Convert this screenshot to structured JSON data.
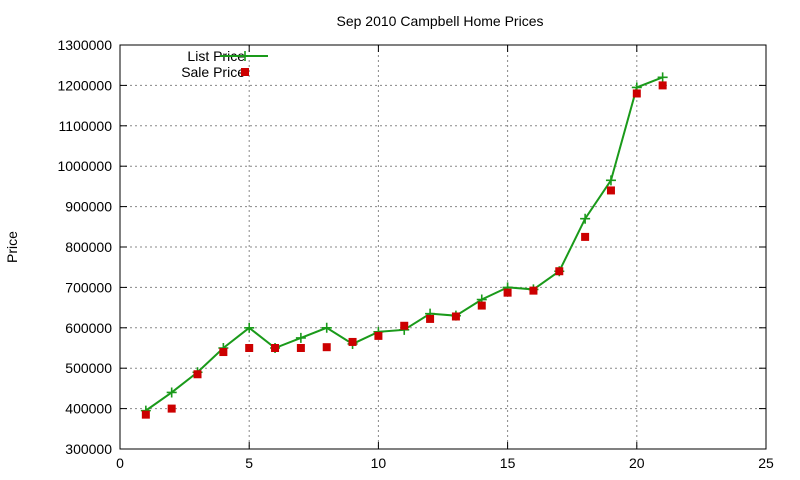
{
  "chart_data": {
    "type": "line",
    "title": "Sep 2010 Campbell Home Prices",
    "xlabel": "",
    "ylabel": "Price",
    "xlim": [
      0,
      25
    ],
    "ylim": [
      300000,
      1300000
    ],
    "x_ticks": [
      0,
      5,
      10,
      15,
      20,
      25
    ],
    "y_ticks": [
      300000,
      400000,
      500000,
      600000,
      700000,
      800000,
      900000,
      1000000,
      1100000,
      1200000,
      1300000
    ],
    "grid": true,
    "legend_position": "top-left",
    "series": [
      {
        "name": "List Price",
        "style": "lines+points",
        "marker": "plus",
        "color": "#1a9a1a",
        "x": [
          1,
          2,
          3,
          4,
          5,
          6,
          7,
          8,
          9,
          10,
          11,
          12,
          13,
          14,
          15,
          16,
          17,
          18,
          19,
          20,
          21
        ],
        "values": [
          395000,
          440000,
          490000,
          550000,
          600000,
          550000,
          575000,
          600000,
          560000,
          590000,
          595000,
          635000,
          630000,
          670000,
          700000,
          695000,
          740000,
          870000,
          965000,
          1195000,
          1220000
        ]
      },
      {
        "name": "Sale Price",
        "style": "points",
        "marker": "square",
        "color": "#cc0000",
        "x": [
          1,
          2,
          3,
          4,
          5,
          6,
          7,
          8,
          9,
          10,
          11,
          12,
          13,
          14,
          15,
          16,
          17,
          18,
          19,
          20,
          21
        ],
        "values": [
          385000,
          400000,
          485000,
          540000,
          550000,
          550000,
          550000,
          552000,
          565000,
          580000,
          605000,
          622000,
          628000,
          655000,
          687000,
          692000,
          740000,
          825000,
          940000,
          1180000,
          1200000
        ]
      }
    ]
  }
}
